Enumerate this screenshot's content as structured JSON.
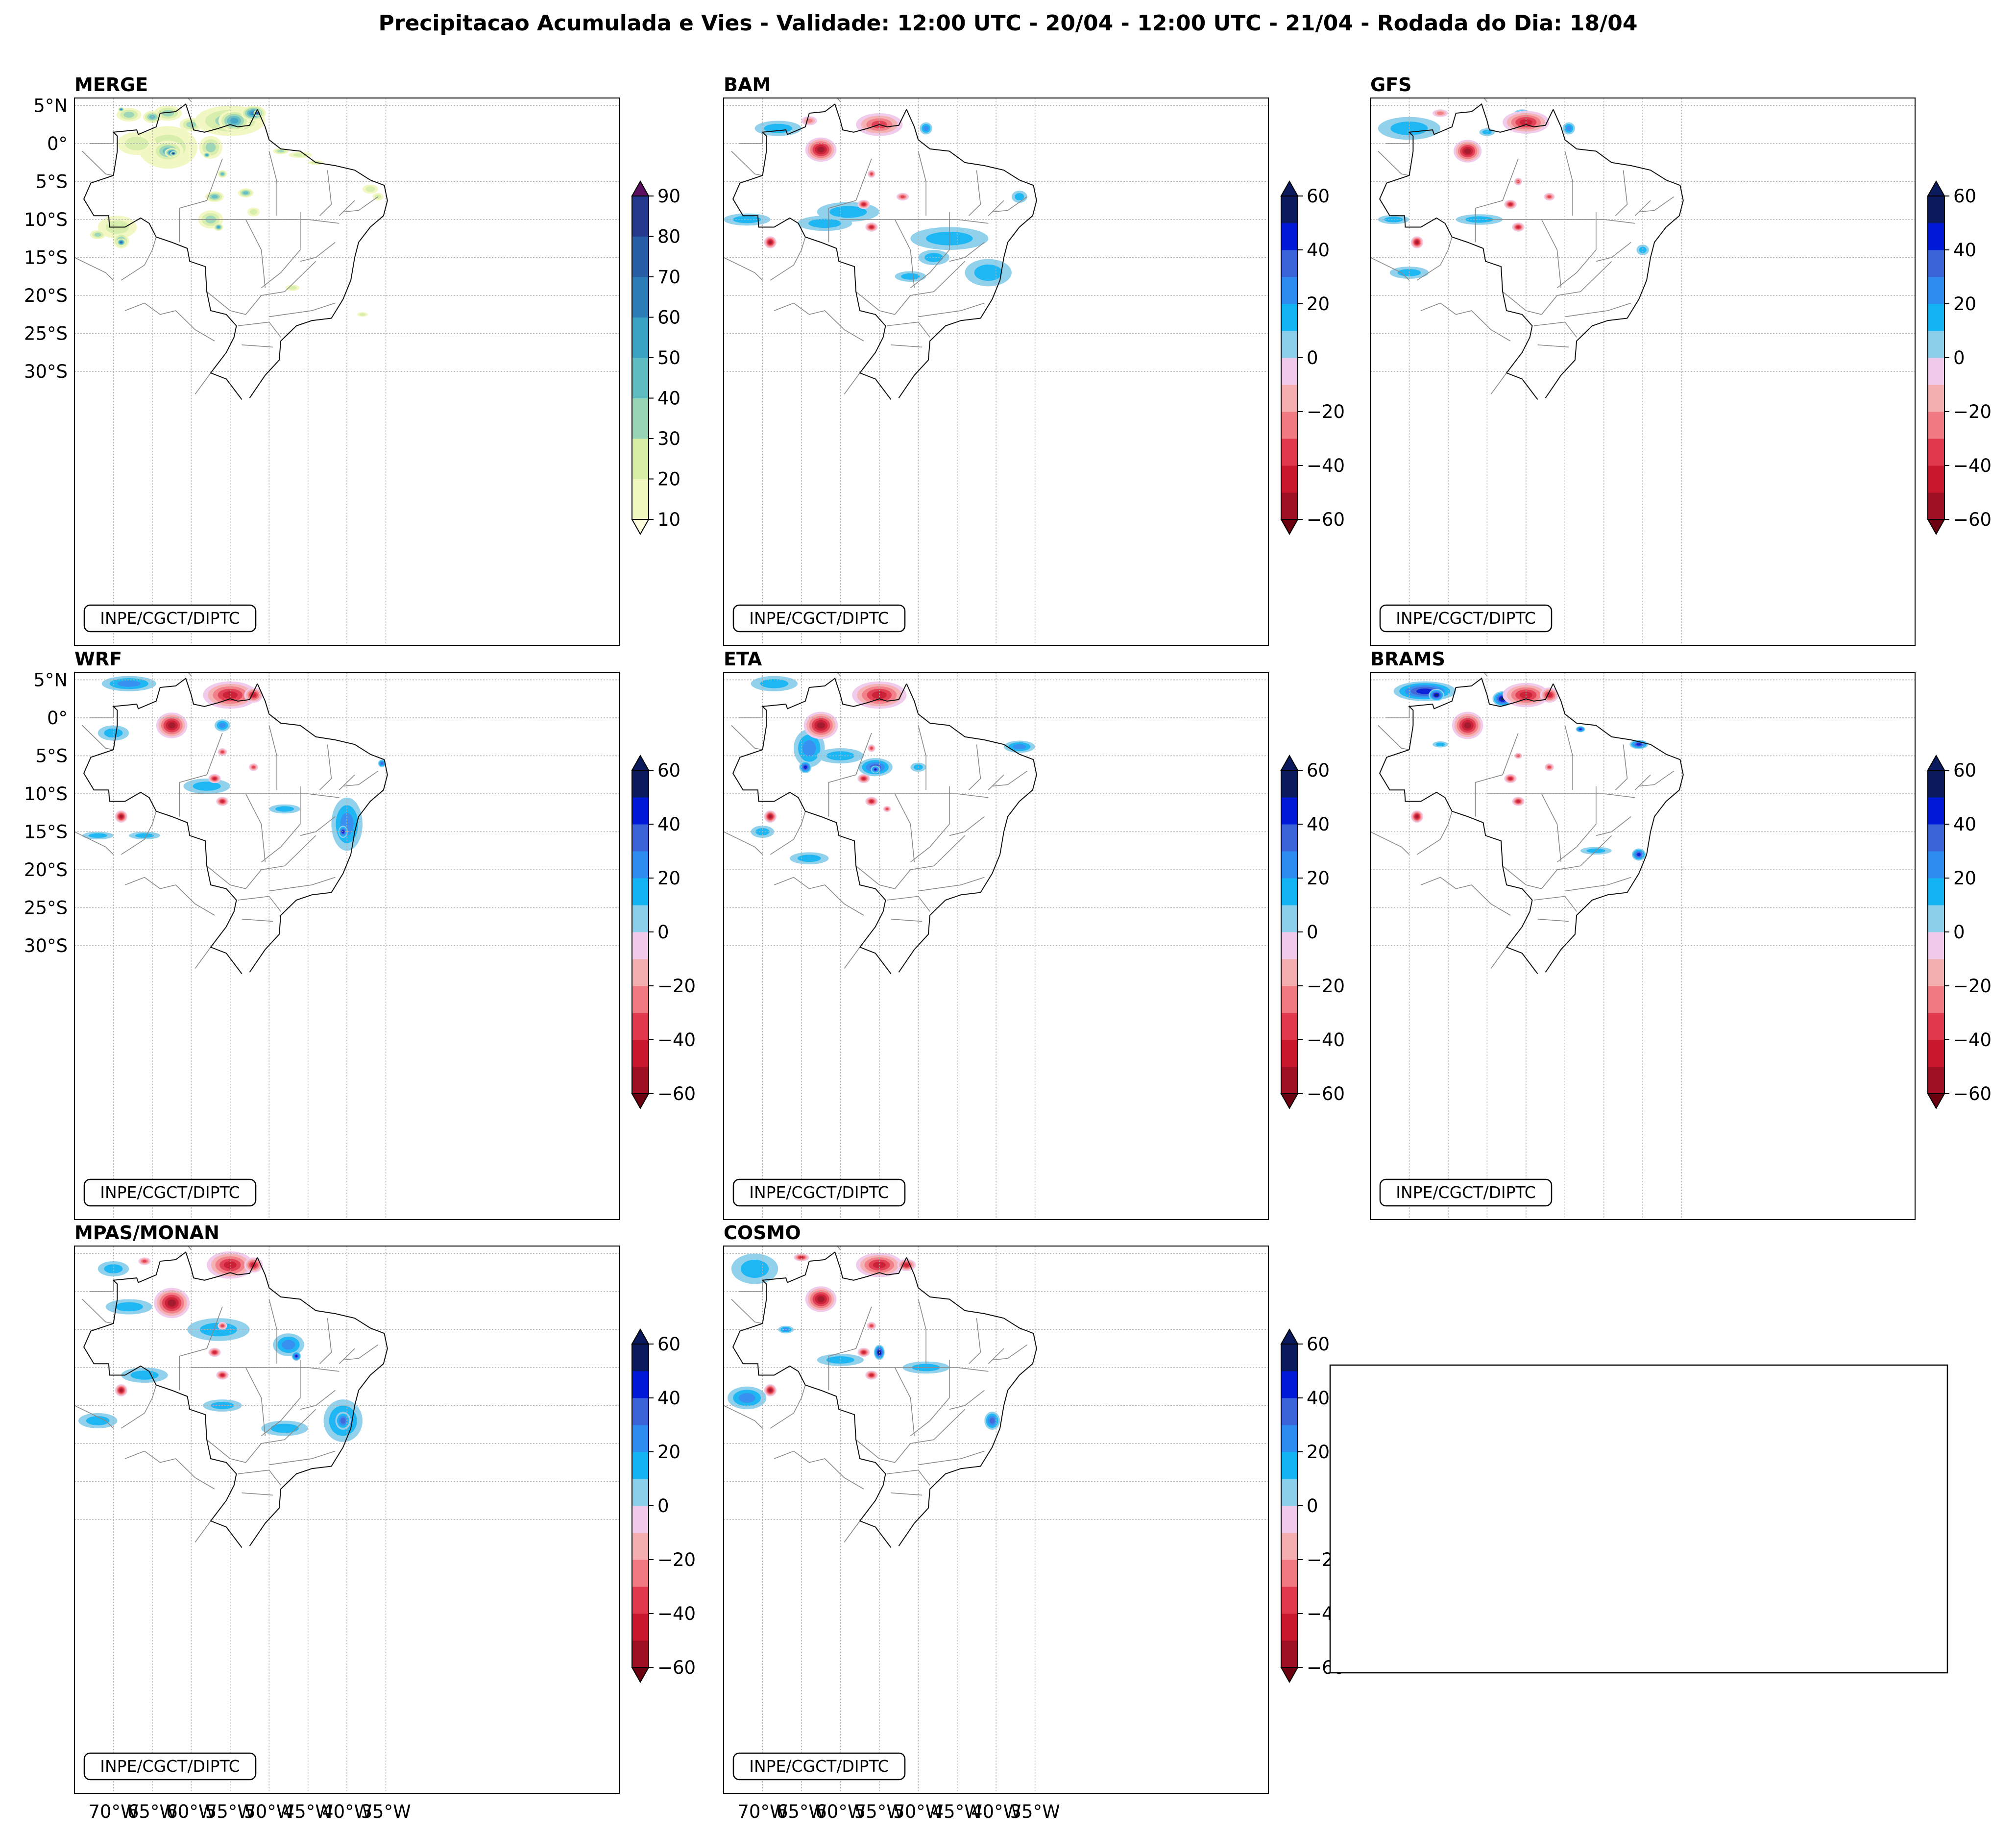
{
  "title": "Precipitacao Acumulada e Vies - Validade: 12:00 UTC - 20/04 - 12:00 UTC - 21/04 - Rodada do Dia: 18/04",
  "credit": "INPE/CGCT/DIPTC",
  "lat_labels": [
    "5°N",
    "0°",
    "5°S",
    "10°S",
    "15°S",
    "20°S",
    "25°S",
    "30°S"
  ],
  "lon_labels": [
    "70°W",
    "65°W",
    "60°W",
    "55°W",
    "50°W",
    "45°W",
    "40°W",
    "35°W"
  ],
  "precip_ticks": [
    "10",
    "20",
    "30",
    "40",
    "50",
    "60",
    "70",
    "80",
    "90"
  ],
  "bias_ticks": [
    "−60",
    "−40",
    "−20",
    "0",
    "20",
    "40",
    "60"
  ],
  "panels": [
    {
      "label": "MERGE",
      "scale": "precip"
    },
    {
      "label": "BAM",
      "scale": "bias"
    },
    {
      "label": "GFS",
      "scale": "bias"
    },
    {
      "label": "WRF",
      "scale": "bias"
    },
    {
      "label": "ETA",
      "scale": "bias"
    },
    {
      "label": "BRAMS",
      "scale": "bias"
    },
    {
      "label": "MPAS/MONAN",
      "scale": "bias"
    },
    {
      "label": "COSMO",
      "scale": "bias"
    }
  ],
  "colors": {
    "precip": [
      "#f2f7c0",
      "#d6eea8",
      "#98d4b6",
      "#5fbcc0",
      "#3aa3c4",
      "#2c7eb8",
      "#275ea6",
      "#24398d",
      "#0d1f5c",
      "#5c1160"
    ],
    "bias": [
      "#6b0010",
      "#9e0f24",
      "#c9172e",
      "#e0384d",
      "#f17a82",
      "#f5aeb0",
      "#f1c9ea",
      "#ffffff",
      "#ffffff",
      "#8ccfeb",
      "#12b4f4",
      "#2e8cf0",
      "#3a63d8",
      "#0018d8",
      "#0a1a5c"
    ]
  },
  "legend_box": {
    "text": ""
  }
}
